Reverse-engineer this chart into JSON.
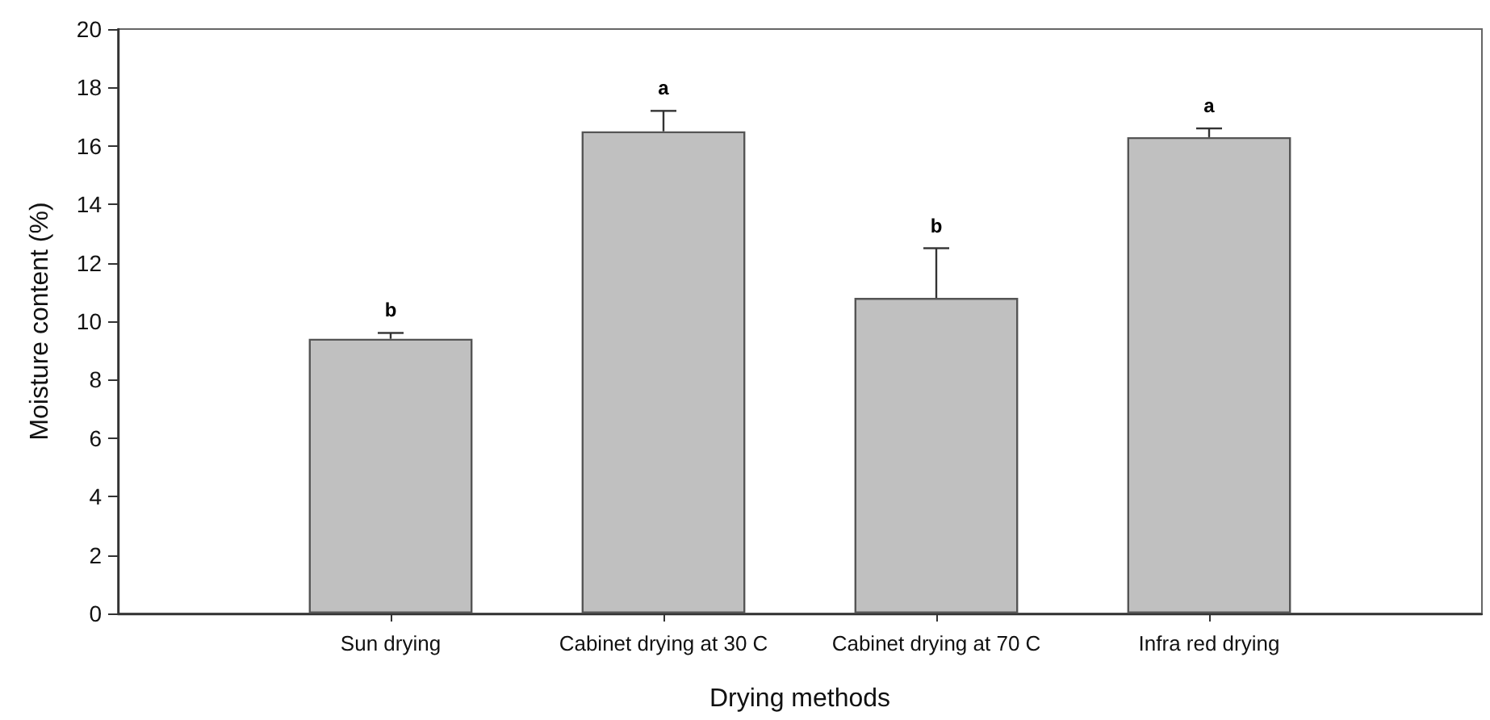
{
  "chart_data": {
    "type": "bar",
    "xlabel": "Drying methods",
    "ylabel": "Moisture content (%)",
    "categories": [
      "Sun drying",
      "Cabinet drying at 30 C",
      "Cabinet drying at 70 C",
      "Infra red drying"
    ],
    "values": [
      9.4,
      16.5,
      10.8,
      16.3
    ],
    "errors": [
      [
        9.4,
        9.6
      ],
      [
        16.5,
        17.2
      ],
      [
        10.8,
        12.5
      ],
      [
        16.3,
        16.6
      ]
    ],
    "color": "#c0c0c0",
    "ylim": [
      0,
      20
    ],
    "yticks": [
      0,
      2,
      4,
      6,
      8,
      10,
      12,
      14,
      16,
      18,
      20
    ],
    "grid": false,
    "annotations": [
      {
        "text": "b",
        "x": "Sun drying",
        "y": 9.6
      },
      {
        "text": "a",
        "x": "Cabinet drying at 30 C",
        "y": 17.2
      },
      {
        "text": "b",
        "x": "Cabinet drying at 70 C",
        "y": 12.5
      },
      {
        "text": "a",
        "x": "Infra red drying",
        "y": 16.6
      }
    ]
  }
}
